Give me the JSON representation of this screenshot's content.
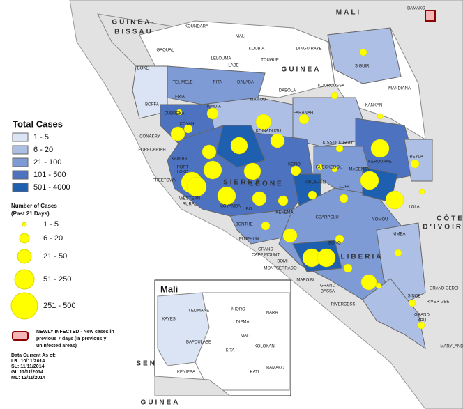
{
  "map": {
    "countries": [
      "MALI",
      "GUINEA-",
      "BISSAU",
      "GUINEA",
      "SIERRA",
      "LEONE",
      "LIBERIA",
      "CÔTE",
      "D'IVOIRE",
      "SENEGAL",
      "GUINEA"
    ],
    "regions": [
      "BAMAKO",
      "KOUNDARA",
      "MALI",
      "GAOUAL",
      "LELOUMA",
      "LABE",
      "KOUBIA",
      "TOUGUE",
      "DINGUIRAYE",
      "SIGUIRI",
      "BOKE",
      "TELIMELE",
      "PITA",
      "DALABA",
      "DABOLA",
      "KOUROUSSA",
      "MANDIANA",
      "FRIA",
      "BOFFA",
      "KINDIA",
      "MAMOU",
      "KANKAN",
      "DUBREKA",
      "COYAH",
      "FARANAH",
      "CONAKRY",
      "FORECARIAH",
      "KOINADUGU",
      "KISSIDOUGOU",
      "KAMBIA",
      "BEYLA",
      "PORT",
      "LOKO",
      "KEROUANE",
      "GUECKEDOU",
      "KONO",
      "FREETOWN",
      "MACENTA",
      "WESTERN",
      "RURAL",
      "MOYAMBA",
      "BO",
      "KENEMA",
      "LOFA",
      "LOLA",
      "KAILAHUN",
      "BONTHE",
      "GBARPOLU",
      "YOMOU",
      "PUJEHUN",
      "NIMBA",
      "GRAND",
      "CAPE MOUNT",
      "BOMI",
      "BONG",
      "MONTSERRADO",
      "MARGIBI",
      "GRAND",
      "BASSA",
      "GRAND GEDEH",
      "SINOE",
      "RIVER GEE",
      "RIVERCESS",
      "GRAND",
      "KRU",
      "MARYLAND"
    ]
  },
  "inset": {
    "title": "Mali",
    "labels": [
      "YELIMANE",
      "NIORO",
      "NARA",
      "KAYES",
      "DIEMA",
      "MALI",
      "KOLOKANI",
      "BAFOULABE",
      "KITA",
      "KENIEBA",
      "BAMAKO",
      "KATI"
    ]
  },
  "legend": {
    "total_title": "Total Cases",
    "total_classes": [
      "1 - 5",
      "6 - 20",
      "21 - 100",
      "101 - 500",
      "501 - 4000"
    ],
    "recent_title": [
      "Number of Cases",
      "(Past 21 Days)"
    ],
    "recent_classes": [
      "1 - 5",
      "6 - 20",
      "21 - 50",
      "51 - 250",
      "251 - 500"
    ],
    "newly_infected": [
      "NEWLY INFECTED - New cases in",
      "previous 7 days (in previously",
      "uninfected areas)"
    ],
    "data_current": [
      "Data Current As of:",
      "LR: 10/11/2014",
      "SL: 11/11/2014",
      "GI: 11/11/2014",
      "ML: 12/11/2014"
    ]
  }
}
